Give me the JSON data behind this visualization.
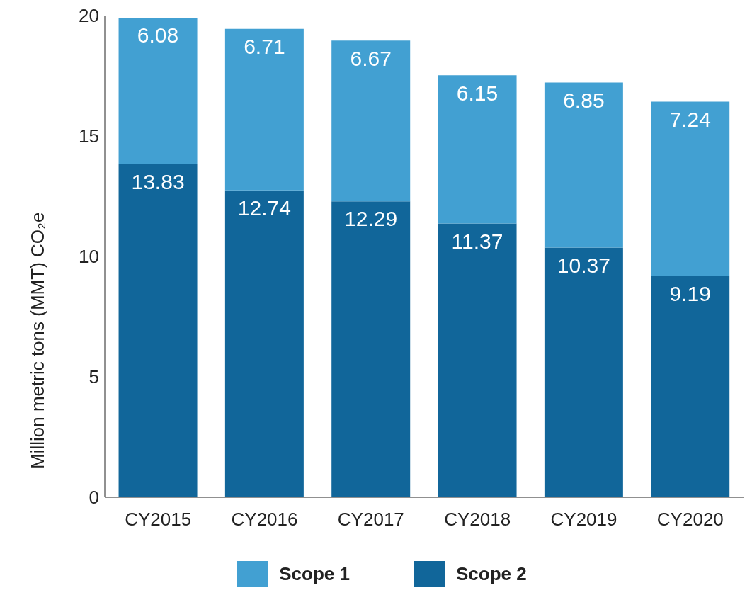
{
  "chart_data": {
    "type": "bar",
    "stacked": true,
    "ylabel": "Million metric tons (MMT) CO₂e",
    "categories": [
      "CY2015",
      "CY2016",
      "CY2017",
      "CY2018",
      "CY2019",
      "CY2020"
    ],
    "series": [
      {
        "name": "Scope 2",
        "color": "#11669a",
        "values": [
          13.83,
          12.74,
          12.29,
          11.37,
          10.37,
          9.19
        ]
      },
      {
        "name": "Scope 1",
        "color": "#42a0d2",
        "values": [
          6.08,
          6.71,
          6.67,
          6.15,
          6.85,
          7.24
        ]
      }
    ],
    "ylim": [
      0,
      20
    ],
    "yticks": [
      0,
      5,
      10,
      15,
      20
    ],
    "data_labels": true,
    "legend": "bottom"
  }
}
